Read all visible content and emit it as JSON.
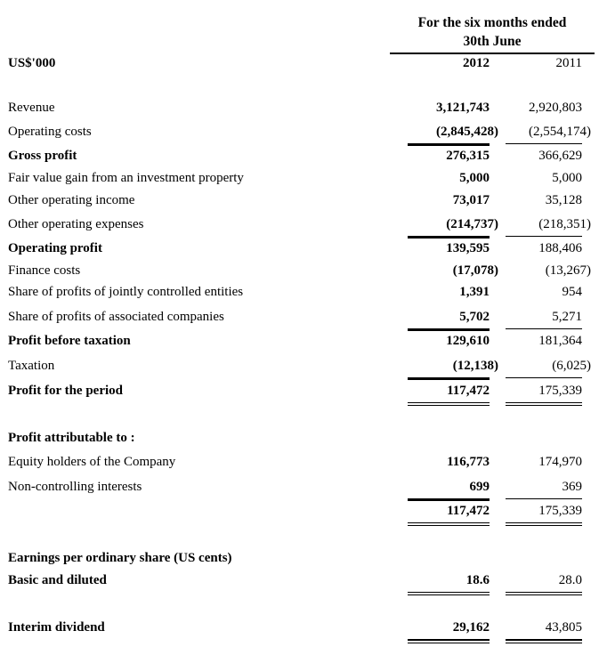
{
  "header": {
    "period_line1": "For the six months ended",
    "period_line2": "30th June",
    "currency_label": "US$'000",
    "year_current": "2012",
    "year_prior": "2011"
  },
  "rows": [
    {
      "label": "Revenue",
      "current": "3,121,743",
      "prior": "2,920,803"
    },
    {
      "label": "Operating costs",
      "current": "(2,845,428)",
      "prior": "(2,554,174)"
    },
    {
      "label": "Gross profit",
      "current": "276,315",
      "prior": "366,629"
    },
    {
      "label": "Fair value gain from an investment property",
      "current": "5,000",
      "prior": "5,000"
    },
    {
      "label": "Other operating income",
      "current": "73,017",
      "prior": "35,128"
    },
    {
      "label": "Other operating expenses",
      "current": "(214,737)",
      "prior": "(218,351)"
    },
    {
      "label": "Operating profit",
      "current": "139,595",
      "prior": "188,406"
    },
    {
      "label": "Finance costs",
      "current": "(17,078)",
      "prior": "(13,267)"
    },
    {
      "label": "Share of profits of jointly controlled entities",
      "current": "1,391",
      "prior": "954"
    },
    {
      "label": "Share of profits of associated companies",
      "current": "5,702",
      "prior": "5,271"
    },
    {
      "label": "Profit before taxation",
      "current": "129,610",
      "prior": "181,364"
    },
    {
      "label": "Taxation",
      "current": "(12,138)",
      "prior": "(6,025)"
    },
    {
      "label": "Profit for the period",
      "current": "117,472",
      "prior": "175,339"
    },
    {
      "label": "Profit attributable to :",
      "current": "",
      "prior": ""
    },
    {
      "label": "Equity holders of the Company",
      "current": "116,773",
      "prior": "174,970"
    },
    {
      "label": "Non-controlling interests",
      "current": "699",
      "prior": "369"
    },
    {
      "label": "",
      "current": "117,472",
      "prior": "175,339"
    },
    {
      "label": "Earnings per ordinary share (US cents)",
      "current": "",
      "prior": ""
    },
    {
      "label": "Basic and diluted",
      "current": "18.6",
      "prior": "28.0"
    },
    {
      "label": "Interim dividend",
      "current": "29,162",
      "prior": "43,805"
    }
  ]
}
